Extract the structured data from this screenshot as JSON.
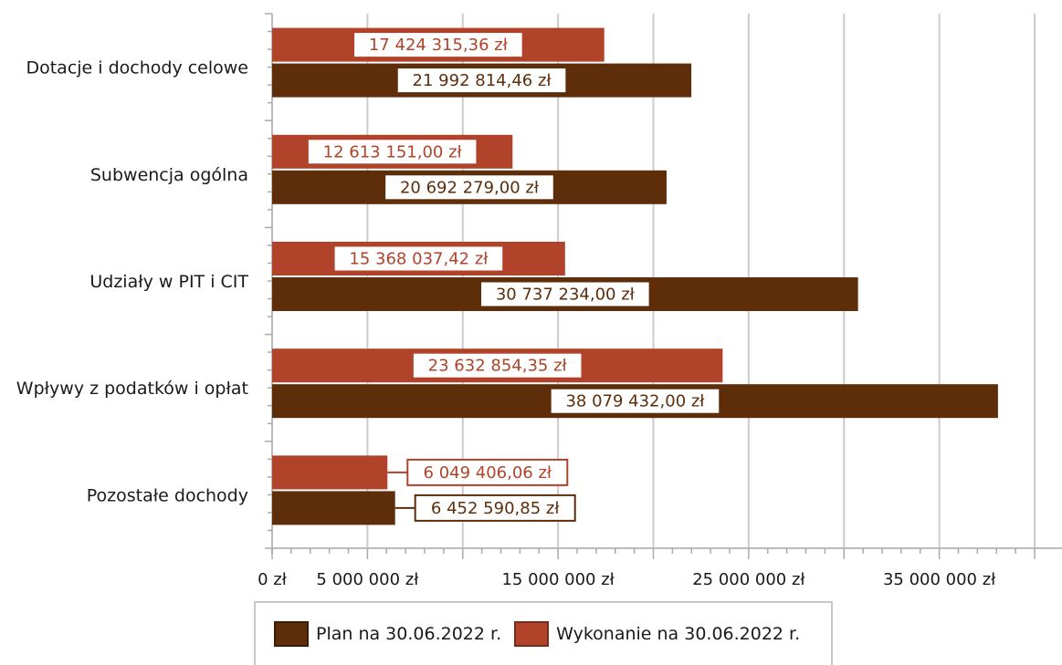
{
  "chart_data": {
    "type": "bar",
    "orientation": "horizontal",
    "categories": [
      "Dotacje i dochody celowe",
      "Subwencja ogólna",
      "Udziały w PIT i CIT",
      "Wpływy z podatków i opłat",
      "Pozostałe dochody"
    ],
    "series": [
      {
        "name": "Wykonanie na 30.06.2022 r.",
        "color": "#b0432a",
        "values": [
          17424315.36,
          12613151.0,
          15368037.42,
          23632854.35,
          6049406.06
        ],
        "labels": [
          "17 424 315,36 zł",
          "12 613 151,00 zł",
          "15 368 037,42 zł",
          "23 632 854,35 zł",
          "6 049 406,06 zł"
        ]
      },
      {
        "name": "Plan na 30.06.2022 r.",
        "color": "#5e2e0b",
        "values": [
          21992814.46,
          20692279.0,
          30737234.0,
          38079432.0,
          6452590.85
        ],
        "labels": [
          "21 992 814,46 zł",
          "20 692 279,00 zł",
          "30 737 234,00 zł",
          "38 079 432,00 zł",
          "6 452 590,85 zł"
        ]
      }
    ],
    "xlim": [
      0,
      40000000
    ],
    "x_tick_labels": [
      {
        "value": 0,
        "label": "0 zł"
      },
      {
        "value": 5000000,
        "label": "5 000 000 zł"
      },
      {
        "value": 15000000,
        "label": "15 000 000 zł"
      },
      {
        "value": 25000000,
        "label": "25 000 000 zł"
      },
      {
        "value": 35000000,
        "label": "35 000 000 zł"
      }
    ],
    "gridlines_at": [
      5000000,
      10000000,
      15000000,
      20000000,
      25000000,
      30000000,
      35000000,
      40000000
    ],
    "grid": true,
    "legend_position": "bottom",
    "legend": [
      {
        "name": "Plan na 30.06.2022 r.",
        "color": "#5e2e0b"
      },
      {
        "name": "Wykonanie na 30.06.2022 r.",
        "color": "#b0432a"
      }
    ]
  }
}
